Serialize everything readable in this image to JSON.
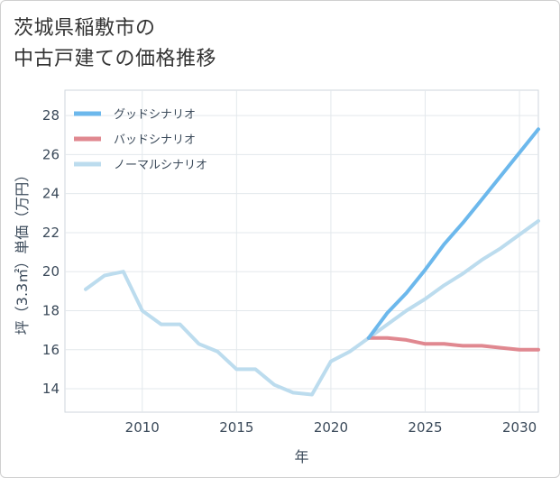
{
  "title_lines": [
    "茨城県稲敷市の",
    "中古戸建ての価格推移"
  ],
  "chart_data": {
    "type": "line",
    "xlabel": "年",
    "ylabel": "坪（3.3㎡）単価（万円）",
    "xlim": [
      2005.9,
      2031
    ],
    "ylim": [
      12.8,
      29.3
    ],
    "xticks": [
      2010,
      2015,
      2020,
      2025,
      2030
    ],
    "yticks": [
      14,
      16,
      18,
      20,
      22,
      24,
      26,
      28
    ],
    "grid": true,
    "legend_position": "top-left",
    "series": [
      {
        "name": "グッドシナリオ",
        "color": "#6cb8ec",
        "x": [
          2022,
          2023,
          2024,
          2025,
          2026,
          2027,
          2028,
          2029,
          2030,
          2031
        ],
        "y": [
          16.6,
          17.9,
          18.9,
          20.1,
          21.4,
          22.5,
          23.7,
          24.9,
          26.1,
          27.3
        ]
      },
      {
        "name": "バッドシナリオ",
        "color": "#e08890",
        "x": [
          2022,
          2023,
          2024,
          2025,
          2026,
          2027,
          2028,
          2029,
          2030,
          2031
        ],
        "y": [
          16.6,
          16.6,
          16.5,
          16.3,
          16.3,
          16.2,
          16.2,
          16.1,
          16.0,
          16.0
        ]
      },
      {
        "name": "ノーマルシナリオ",
        "color": "#bcdcee",
        "x": [
          2007,
          2008,
          2009,
          2010,
          2011,
          2012,
          2013,
          2014,
          2015,
          2016,
          2017,
          2018,
          2019,
          2020,
          2021,
          2022,
          2023,
          2024,
          2025,
          2026,
          2027,
          2028,
          2029,
          2030,
          2031
        ],
        "y": [
          19.1,
          19.8,
          20.0,
          18.0,
          17.3,
          17.3,
          16.3,
          15.9,
          15.0,
          15.0,
          14.2,
          13.8,
          13.7,
          15.4,
          15.9,
          16.6,
          17.3,
          18.0,
          18.6,
          19.3,
          19.9,
          20.6,
          21.2,
          21.9,
          22.6
        ]
      }
    ]
  }
}
